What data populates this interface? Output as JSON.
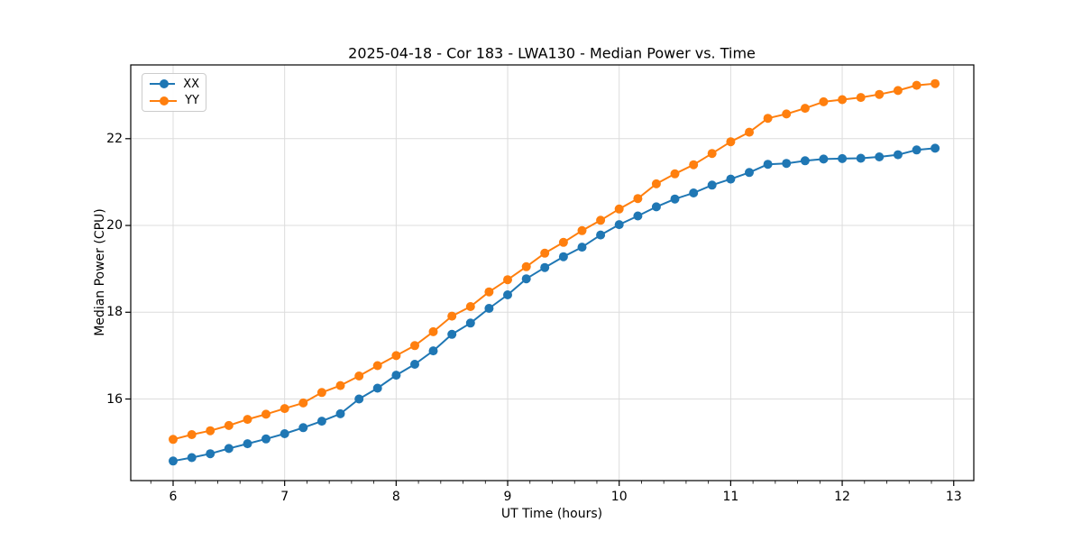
{
  "window": {
    "background": "#ffffff"
  },
  "chart_data": {
    "type": "line",
    "title": "2025-04-18 - Cor 183 - LWA130 - Median Power vs. Time",
    "xlabel": "UT Time (hours)",
    "ylabel": "Median Power (CPU)",
    "xlim": [
      5.62,
      13.18
    ],
    "ylim": [
      14.12,
      23.7
    ],
    "xticks": [
      6,
      7,
      8,
      9,
      10,
      11,
      12,
      13
    ],
    "yticks": [
      16,
      18,
      20,
      22
    ],
    "x_minor_step": 0.2,
    "grid": true,
    "grid_color": "#dcdcdc",
    "spine_color": "#000000",
    "legend_position": "upper-left",
    "marker": "circle",
    "x": [
      6.0,
      6.167,
      6.333,
      6.5,
      6.667,
      6.833,
      7.0,
      7.167,
      7.333,
      7.5,
      7.667,
      7.833,
      8.0,
      8.167,
      8.333,
      8.5,
      8.667,
      8.833,
      9.0,
      9.167,
      9.333,
      9.5,
      9.667,
      9.833,
      10.0,
      10.167,
      10.333,
      10.5,
      10.667,
      10.833,
      11.0,
      11.167,
      11.333,
      11.5,
      11.667,
      11.833,
      12.0,
      12.167,
      12.333,
      12.5,
      12.667,
      12.833
    ],
    "series": [
      {
        "name": "XX",
        "color": "#1f77b4",
        "values": [
          14.57,
          14.65,
          14.74,
          14.86,
          14.97,
          15.08,
          15.2,
          15.34,
          15.49,
          15.66,
          16.0,
          16.25,
          16.55,
          16.8,
          17.11,
          17.49,
          17.75,
          18.09,
          18.4,
          18.77,
          19.03,
          19.28,
          19.5,
          19.78,
          20.02,
          20.22,
          20.43,
          20.61,
          20.75,
          20.93,
          21.07,
          21.22,
          21.41,
          21.43,
          21.49,
          21.53,
          21.54,
          21.55,
          21.58,
          21.63,
          21.74,
          21.78
        ]
      },
      {
        "name": "YY",
        "color": "#ff7f0e",
        "values": [
          15.07,
          15.18,
          15.27,
          15.39,
          15.53,
          15.65,
          15.78,
          15.91,
          16.15,
          16.31,
          16.53,
          16.77,
          17.0,
          17.23,
          17.55,
          17.91,
          18.13,
          18.47,
          18.75,
          19.05,
          19.36,
          19.61,
          19.88,
          20.12,
          20.38,
          20.62,
          20.96,
          21.19,
          21.4,
          21.66,
          21.93,
          22.15,
          22.47,
          22.57,
          22.7,
          22.85,
          22.9,
          22.95,
          23.02,
          23.11,
          23.23,
          23.27
        ]
      }
    ]
  }
}
